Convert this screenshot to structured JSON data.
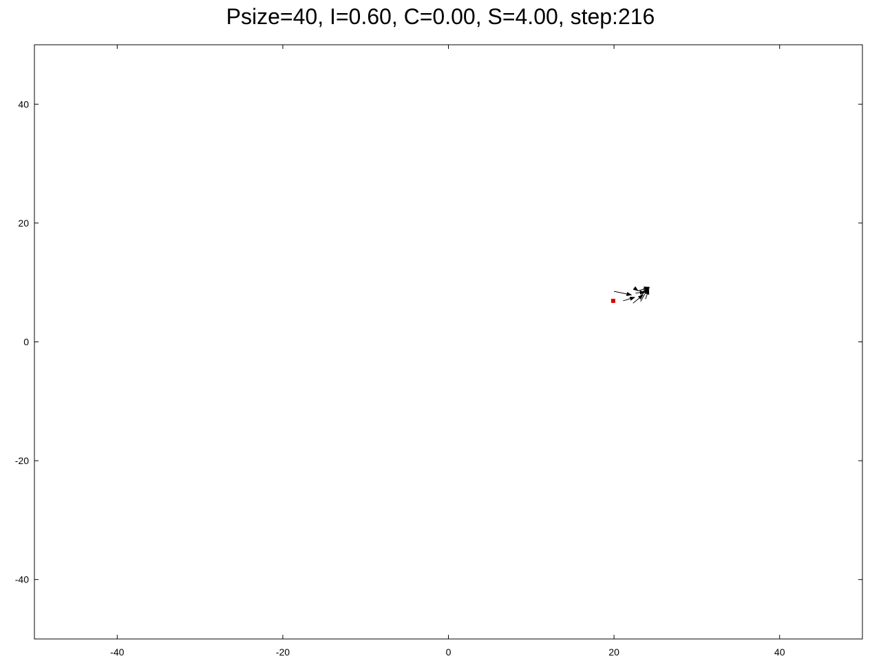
{
  "chart_data": {
    "type": "vector-field",
    "title": "Psize=40, I=0.60, C=0.00, S=4.00, step:216",
    "xlim": [
      -50,
      50
    ],
    "ylim": [
      -50,
      50
    ],
    "xticks": [
      -40,
      -20,
      0,
      20,
      40
    ],
    "yticks": [
      40,
      20,
      0,
      -20,
      -40
    ],
    "xtick_labels": [
      "-40",
      "-20",
      "0",
      "20",
      "40"
    ],
    "ytick_labels": [
      "40",
      "20",
      "0",
      "-20",
      "-40"
    ],
    "grid": false,
    "target": {
      "x": 19.9,
      "y": 6.9,
      "color": "#e00000"
    },
    "vectors": [
      {
        "x": 20.0,
        "y": 8.5,
        "dx": 2.1,
        "dy": -0.6
      },
      {
        "x": 21.1,
        "y": 6.9,
        "dx": 1.4,
        "dy": 0.6
      },
      {
        "x": 22.3,
        "y": 6.5,
        "dx": 1.2,
        "dy": 1.4
      },
      {
        "x": 22.6,
        "y": 8.2,
        "dx": 1.1,
        "dy": 0.2
      },
      {
        "x": 23.1,
        "y": 7.6,
        "dx": 1.0,
        "dy": 1.3
      },
      {
        "x": 23.2,
        "y": 6.8,
        "dx": 1.0,
        "dy": 2.4
      },
      {
        "x": 22.9,
        "y": 8.6,
        "dx": 1.4,
        "dy": 0.5
      },
      {
        "x": 23.5,
        "y": 8.9,
        "dx": 0.7,
        "dy": 0.3
      },
      {
        "x": 22.5,
        "y": 9.0,
        "dx": 0.4,
        "dy": -0.4
      },
      {
        "x": 23.8,
        "y": 7.2,
        "dx": 0.4,
        "dy": 1.6
      }
    ],
    "vector_color": "#000000"
  }
}
